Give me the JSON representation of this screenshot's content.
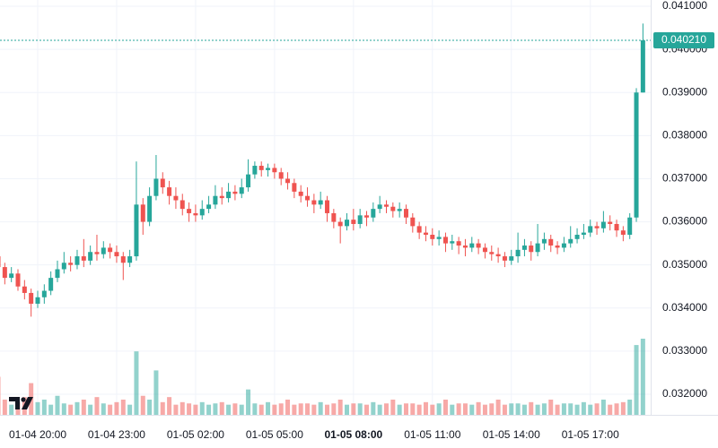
{
  "chart_data": {
    "type": "candlestick",
    "categories": [
      null,
      null,
      null,
      null,
      null,
      null,
      "01-04 20:00",
      null,
      null,
      null,
      null,
      null,
      null,
      null,
      null,
      null,
      null,
      null,
      "01-04 23:00",
      null,
      null,
      null,
      null,
      null,
      null,
      null,
      null,
      null,
      null,
      null,
      "01-05 02:00",
      null,
      null,
      null,
      null,
      null,
      null,
      null,
      null,
      null,
      null,
      null,
      "01-05 05:00",
      null,
      null,
      null,
      null,
      null,
      null,
      null,
      null,
      null,
      null,
      null,
      "01-05 08:00",
      null,
      null,
      null,
      null,
      null,
      null,
      null,
      null,
      null,
      null,
      null,
      "01-05 11:00",
      null,
      null,
      null,
      null,
      null,
      null,
      null,
      null,
      null,
      null,
      null,
      "01-05 14:00",
      null,
      null,
      null,
      null,
      null,
      null,
      null,
      null,
      null,
      null,
      null,
      "01-05 17:00",
      null,
      null,
      null,
      null,
      null,
      null,
      null,
      null
    ],
    "open": [
      0.0352,
      0.03495,
      0.0347,
      0.0348,
      0.0345,
      0.03435,
      0.0341,
      0.03425,
      0.0344,
      0.0347,
      0.0349,
      0.03505,
      0.035,
      0.0352,
      0.0351,
      0.0353,
      0.03525,
      0.0354,
      0.0353,
      0.0352,
      0.03505,
      0.0352,
      0.0364,
      0.036,
      0.0366,
      0.037,
      0.0368,
      0.0366,
      0.0365,
      0.0363,
      0.0362,
      0.03615,
      0.0363,
      0.0364,
      0.0366,
      0.03655,
      0.0367,
      0.03665,
      0.0368,
      0.0371,
      0.0373,
      0.0372,
      0.03725,
      0.03715,
      0.037,
      0.0369,
      0.0367,
      0.0366,
      0.0365,
      0.0364,
      0.0365,
      0.0362,
      0.036,
      0.0359,
      0.03605,
      0.03595,
      0.03615,
      0.0361,
      0.0363,
      0.0364,
      0.03635,
      0.03625,
      0.0363,
      0.0361,
      0.0359,
      0.03575,
      0.0357,
      0.0356,
      0.03565,
      0.0355,
      0.03555,
      0.03545,
      0.0354,
      0.0355,
      0.0354,
      0.0353,
      0.03525,
      0.0352,
      0.0351,
      0.0352,
      0.03535,
      0.03545,
      0.0353,
      0.0355,
      0.0356,
      0.03545,
      0.0354,
      0.0355,
      0.0356,
      0.0357,
      0.03575,
      0.0359,
      0.03585,
      0.036,
      0.03595,
      0.0358,
      0.0357,
      0.0361,
      0.039
    ],
    "high": [
      0.0353,
      0.03505,
      0.03495,
      0.0349,
      0.03465,
      0.03445,
      0.0344,
      0.03455,
      0.03485,
      0.0351,
      0.0353,
      0.0352,
      0.03535,
      0.0356,
      0.03545,
      0.0357,
      0.03555,
      0.0355,
      0.03545,
      0.0353,
      0.03535,
      0.0374,
      0.03655,
      0.0368,
      0.03755,
      0.03715,
      0.03695,
      0.0368,
      0.03665,
      0.03645,
      0.0364,
      0.0365,
      0.0366,
      0.03685,
      0.0368,
      0.0369,
      0.03685,
      0.037,
      0.03745,
      0.0374,
      0.0374,
      0.03735,
      0.03735,
      0.03725,
      0.03715,
      0.037,
      0.03685,
      0.0368,
      0.03665,
      0.0367,
      0.0366,
      0.0363,
      0.0361,
      0.0362,
      0.0363,
      0.0363,
      0.03625,
      0.03645,
      0.0366,
      0.0365,
      0.03645,
      0.03645,
      0.0364,
      0.0362,
      0.036,
      0.0359,
      0.03585,
      0.0358,
      0.03575,
      0.0357,
      0.03565,
      0.0356,
      0.03565,
      0.0356,
      0.0355,
      0.03545,
      0.0354,
      0.0353,
      0.03535,
      0.03575,
      0.0356,
      0.03555,
      0.03595,
      0.03575,
      0.0357,
      0.03555,
      0.03565,
      0.0359,
      0.03585,
      0.03595,
      0.03605,
      0.036,
      0.03625,
      0.03615,
      0.03605,
      0.0359,
      0.0362,
      0.0391,
      0.0406
    ],
    "low": [
      0.0348,
      0.03455,
      0.0346,
      0.0344,
      0.0342,
      0.0338,
      0.034,
      0.0341,
      0.0343,
      0.0346,
      0.0348,
      0.03485,
      0.0349,
      0.03495,
      0.035,
      0.0351,
      0.03515,
      0.03515,
      0.03505,
      0.03465,
      0.03495,
      0.0351,
      0.0357,
      0.0359,
      0.0365,
      0.03665,
      0.0364,
      0.0363,
      0.03615,
      0.036,
      0.036,
      0.03605,
      0.0362,
      0.0363,
      0.0364,
      0.03645,
      0.0365,
      0.03655,
      0.0367,
      0.037,
      0.03705,
      0.03705,
      0.037,
      0.03685,
      0.03675,
      0.03655,
      0.03645,
      0.03635,
      0.0362,
      0.0363,
      0.036,
      0.03585,
      0.0355,
      0.0358,
      0.0358,
      0.03585,
      0.0359,
      0.036,
      0.0362,
      0.0362,
      0.0361,
      0.0361,
      0.03595,
      0.03575,
      0.0356,
      0.03555,
      0.03545,
      0.03545,
      0.0353,
      0.03535,
      0.03525,
      0.0352,
      0.0353,
      0.03525,
      0.03515,
      0.0351,
      0.03505,
      0.03495,
      0.035,
      0.03505,
      0.0352,
      0.0351,
      0.0352,
      0.03535,
      0.0353,
      0.03525,
      0.0353,
      0.0354,
      0.0355,
      0.0356,
      0.03565,
      0.0357,
      0.03575,
      0.0358,
      0.03565,
      0.03555,
      0.0356,
      0.036,
      0.039
    ],
    "close": [
      0.03495,
      0.0347,
      0.0348,
      0.0345,
      0.03435,
      0.0341,
      0.03425,
      0.0344,
      0.0347,
      0.0349,
      0.03505,
      0.035,
      0.0352,
      0.0351,
      0.0353,
      0.03525,
      0.0354,
      0.0353,
      0.0352,
      0.03505,
      0.0352,
      0.0364,
      0.036,
      0.0366,
      0.037,
      0.0368,
      0.0366,
      0.0365,
      0.0363,
      0.0362,
      0.03615,
      0.0363,
      0.0364,
      0.0366,
      0.03655,
      0.0367,
      0.03665,
      0.0368,
      0.0371,
      0.0373,
      0.0372,
      0.03725,
      0.03715,
      0.037,
      0.0369,
      0.0367,
      0.0366,
      0.0365,
      0.0364,
      0.0365,
      0.0362,
      0.036,
      0.0359,
      0.03605,
      0.03595,
      0.03615,
      0.0361,
      0.0363,
      0.0364,
      0.03635,
      0.03625,
      0.0363,
      0.0361,
      0.0359,
      0.03575,
      0.0357,
      0.0356,
      0.03565,
      0.0355,
      0.03555,
      0.03545,
      0.0354,
      0.0355,
      0.0354,
      0.0353,
      0.03525,
      0.0352,
      0.0351,
      0.0352,
      0.03535,
      0.03545,
      0.0353,
      0.0355,
      0.0356,
      0.03545,
      0.0354,
      0.0355,
      0.0356,
      0.0357,
      0.03575,
      0.0359,
      0.03585,
      0.036,
      0.03595,
      0.0358,
      0.0357,
      0.0361,
      0.039,
      0.04021
    ],
    "volume": [
      30,
      12,
      8,
      10,
      14,
      25,
      10,
      12,
      8,
      15,
      9,
      8,
      10,
      12,
      8,
      14,
      9,
      8,
      10,
      12,
      8,
      50,
      15,
      12,
      35,
      10,
      14,
      8,
      10,
      9,
      8,
      10,
      8,
      9,
      10,
      8,
      9,
      8,
      20,
      9,
      8,
      10,
      8,
      9,
      12,
      8,
      9,
      9,
      8,
      10,
      8,
      9,
      12,
      8,
      9,
      9,
      8,
      10,
      8,
      9,
      12,
      8,
      9,
      9,
      8,
      10,
      8,
      9,
      12,
      8,
      9,
      9,
      8,
      10,
      8,
      9,
      12,
      8,
      9,
      9,
      8,
      10,
      8,
      9,
      12,
      8,
      9,
      9,
      8,
      10,
      8,
      9,
      12,
      8,
      9,
      10,
      12,
      55,
      60
    ],
    "up_color": "#26a69a",
    "down_color": "#ef5350",
    "ylim": [
      0.031522,
      0.041146
    ],
    "yticks": [
      {
        "value": 0.032,
        "label": "0.032000"
      },
      {
        "value": 0.033,
        "label": "0.033000"
      },
      {
        "value": 0.034,
        "label": "0.034000"
      },
      {
        "value": 0.035,
        "label": "0.035000"
      },
      {
        "value": 0.036,
        "label": "0.036000"
      },
      {
        "value": 0.037,
        "label": "0.037000"
      },
      {
        "value": 0.038,
        "label": "0.038000"
      },
      {
        "value": 0.039,
        "label": "0.039000"
      },
      {
        "value": 0.04,
        "label": "0.040000"
      },
      {
        "value": 0.041,
        "label": "0.041000"
      }
    ],
    "last_price": {
      "value": 0.04021,
      "label": "0.040210"
    },
    "grid": true
  }
}
